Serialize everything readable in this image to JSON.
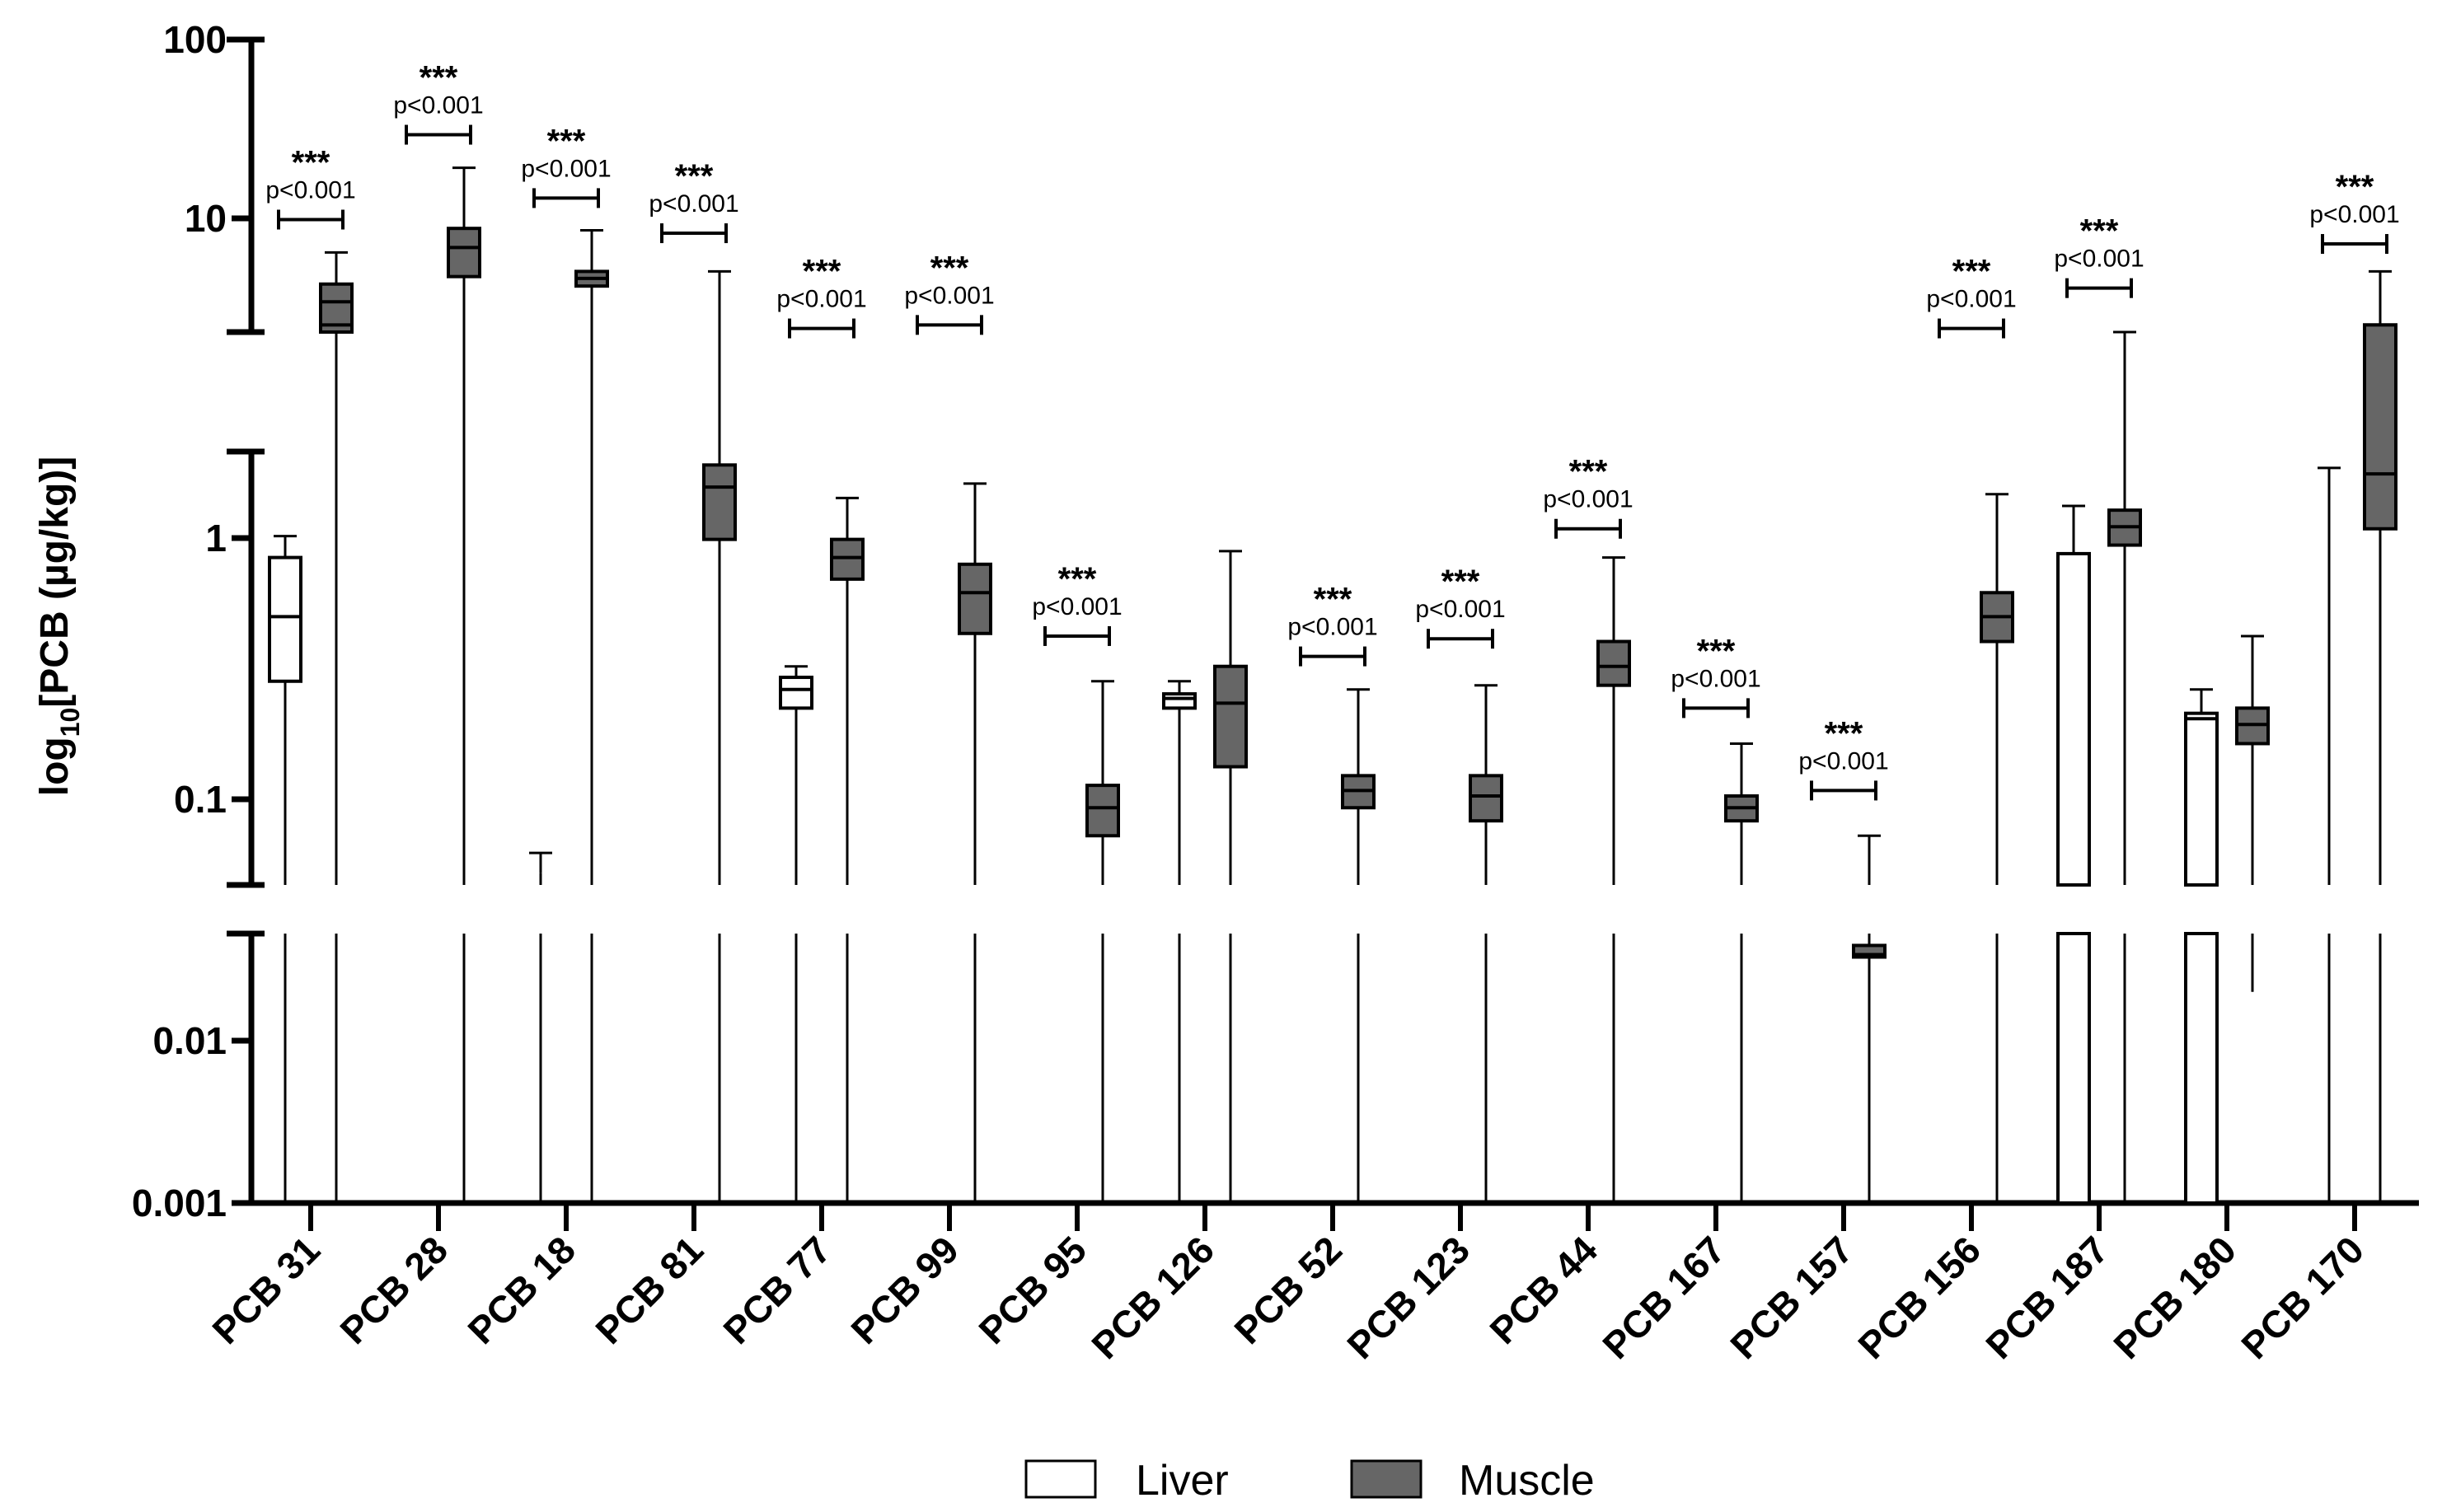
{
  "chart_data": {
    "type": "box",
    "y_scale": "log10",
    "ylabel_prefix": "log",
    "ylabel_sub": "10",
    "ylabel_suffix": "[PCB (µg/kg)]",
    "y_ticks": [
      "100",
      "10",
      "1",
      "0.1",
      "0.01",
      "0.001"
    ],
    "y_tick_values": [
      100,
      10,
      1,
      0.1,
      0.01,
      0.001
    ],
    "axis_breaks": [
      [
        2.0,
        2.2
      ],
      [
        0.04,
        0.045
      ]
    ],
    "categories": [
      "PCB 31",
      "PCB 28",
      "PCB 18",
      "PCB 81",
      "PCB 77",
      "PCB 99",
      "PCB 95",
      "PCB 126",
      "PCB 52",
      "PCB 123",
      "PCB 44",
      "PCB 167",
      "PCB 157",
      "PCB 156",
      "PCB 187",
      "PCB 180",
      "PCB 170"
    ],
    "legend": {
      "liver": "Liver",
      "muscle": "Muscle"
    },
    "colors": {
      "liver_fill": "#ffffff",
      "muscle_fill": "#666666",
      "stroke": "#000000"
    },
    "series": [
      {
        "name": "Liver",
        "boxes": [
          {
            "category": "PCB 31",
            "min": 0.001,
            "q1": 0.28,
            "median": 0.5,
            "q3": 0.85,
            "max": 1.03
          },
          {
            "category": "PCB 28",
            "min": 0.001,
            "q1": 0.001,
            "median": 0.001,
            "q3": 0.001,
            "max": 0.001
          },
          {
            "category": "PCB 18",
            "min": 0.001,
            "q1": 0.05,
            "median": 0.05,
            "q3": 0.05,
            "max": 0.06
          },
          {
            "category": "PCB 81",
            "min": 0.001,
            "q1": 0.001,
            "median": 0.001,
            "q3": 0.001,
            "max": 0.001
          },
          {
            "category": "PCB 77",
            "min": 0.001,
            "q1": 0.22,
            "median": 0.26,
            "q3": 0.29,
            "max": 0.32
          },
          {
            "category": "PCB 99",
            "min": 0.001,
            "q1": 0.001,
            "median": 0.001,
            "q3": 0.001,
            "max": 0.001
          },
          {
            "category": "PCB 95",
            "min": 0.001,
            "q1": 0.001,
            "median": 0.001,
            "q3": 0.001,
            "max": 0.001
          },
          {
            "category": "PCB 126",
            "min": 0.001,
            "q1": 0.22,
            "median": 0.24,
            "q3": 0.25,
            "max": 0.28
          },
          {
            "category": "PCB 52",
            "min": 0.001,
            "q1": 0.001,
            "median": 0.001,
            "q3": 0.001,
            "max": 0.001
          },
          {
            "category": "PCB 123",
            "min": 0.001,
            "q1": 0.001,
            "median": 0.001,
            "q3": 0.001,
            "max": 0.001
          },
          {
            "category": "PCB 44",
            "min": 0.001,
            "q1": 0.001,
            "median": 0.001,
            "q3": 0.001,
            "max": 0.001
          },
          {
            "category": "PCB 167",
            "min": 0.001,
            "q1": 0.001,
            "median": 0.001,
            "q3": 0.001,
            "max": 0.001
          },
          {
            "category": "PCB 157",
            "min": 0.001,
            "q1": 0.001,
            "median": 0.001,
            "q3": 0.001,
            "max": 0.001
          },
          {
            "category": "PCB 156",
            "min": 0.001,
            "q1": 0.001,
            "median": 0.001,
            "q3": 0.001,
            "max": 0.001
          },
          {
            "category": "PCB 187",
            "min": 0.001,
            "q1": 0.001,
            "median": 0.001,
            "q3": 0.88,
            "max": 1.35
          },
          {
            "category": "PCB 180",
            "min": 0.001,
            "q1": 0.001,
            "median": 0.2,
            "q3": 0.21,
            "max": 0.26
          },
          {
            "category": "PCB 170",
            "min": 0.001,
            "q1": 0.001,
            "median": 0.001,
            "q3": 0.001,
            "max": 1.9
          }
        ]
      },
      {
        "name": "Muscle",
        "boxes": [
          {
            "category": "PCB 31",
            "min": 0.001,
            "q1": 2.0,
            "median": 3.0,
            "q3": 3.8,
            "max": 5.8
          },
          {
            "category": "PCB 28",
            "min": 0.001,
            "q1": 4.2,
            "median": 6.2,
            "q3": 8.0,
            "max": 18
          },
          {
            "category": "PCB 18",
            "min": 0.001,
            "q1": 3.7,
            "median": 4.1,
            "q3": 4.5,
            "max": 7.8
          },
          {
            "category": "PCB 81",
            "min": 0.001,
            "q1": 1.0,
            "median": 1.6,
            "q3": 1.95,
            "max": 4.5
          },
          {
            "category": "PCB 77",
            "min": 0.001,
            "q1": 0.7,
            "median": 0.85,
            "q3": 1.0,
            "max": 1.45
          },
          {
            "category": "PCB 99",
            "min": 0.001,
            "q1": 0.43,
            "median": 0.62,
            "q3": 0.8,
            "max": 1.65
          },
          {
            "category": "PCB 95",
            "min": 0.001,
            "q1": 0.07,
            "median": 0.09,
            "q3": 0.11,
            "max": 0.28
          },
          {
            "category": "PCB 126",
            "min": 0.001,
            "q1": 0.13,
            "median": 0.23,
            "q3": 0.32,
            "max": 0.9
          },
          {
            "category": "PCB 52",
            "min": 0.001,
            "q1": 0.09,
            "median": 0.105,
            "q3": 0.12,
            "max": 0.26
          },
          {
            "category": "PCB 123",
            "min": 0.001,
            "q1": 0.08,
            "median": 0.1,
            "q3": 0.12,
            "max": 0.27
          },
          {
            "category": "PCB 44",
            "min": 0.001,
            "q1": 0.27,
            "median": 0.32,
            "q3": 0.4,
            "max": 0.85
          },
          {
            "category": "PCB 167",
            "min": 0.001,
            "q1": 0.08,
            "median": 0.09,
            "q3": 0.1,
            "max": 0.16
          },
          {
            "category": "PCB 157",
            "min": 0.001,
            "q1": 0.029,
            "median": 0.03,
            "q3": 0.034,
            "max": 0.07
          },
          {
            "category": "PCB 156",
            "min": 0.001,
            "q1": 0.4,
            "median": 0.5,
            "q3": 0.62,
            "max": 1.5
          },
          {
            "category": "PCB 187",
            "min": 0.001,
            "q1": 0.95,
            "median": 1.12,
            "q3": 1.3,
            "max": 2.0
          },
          {
            "category": "PCB 180",
            "min": 0.018,
            "q1": 0.16,
            "median": 0.19,
            "q3": 0.22,
            "max": 0.42
          },
          {
            "category": "PCB 170",
            "min": 0.001,
            "q1": 1.1,
            "median": 1.8,
            "q3": 2.2,
            "max": 4.5
          }
        ]
      }
    ],
    "significance": [
      {
        "category": "PCB 31",
        "stars": "***",
        "p": "p<0.001",
        "level": 9.0
      },
      {
        "category": "PCB 28",
        "stars": "***",
        "p": "p<0.001",
        "level": 28
      },
      {
        "category": "PCB 18",
        "stars": "***",
        "p": "p<0.001",
        "level": 12
      },
      {
        "category": "PCB 81",
        "stars": "***",
        "p": "p<0.001",
        "level": 7.5
      },
      {
        "category": "PCB 77",
        "stars": "***",
        "p": "p<0.001",
        "level": 2.1
      },
      {
        "category": "PCB 99",
        "stars": "***",
        "p": "p<0.001",
        "level": 2.2
      },
      {
        "category": "PCB 95",
        "stars": "***",
        "p": "p<0.001",
        "level": 0.42
      },
      {
        "category": "PCB 52",
        "stars": "***",
        "p": "p<0.001",
        "level": 0.35
      },
      {
        "category": "PCB 123",
        "stars": "***",
        "p": "p<0.001",
        "level": 0.41
      },
      {
        "category": "PCB 44",
        "stars": "***",
        "p": "p<0.001",
        "level": 1.1
      },
      {
        "category": "PCB 167",
        "stars": "***",
        "p": "p<0.001",
        "level": 0.22
      },
      {
        "category": "PCB 157",
        "stars": "***",
        "p": "p<0.001",
        "level": 0.105
      },
      {
        "category": "PCB 156",
        "stars": "***",
        "p": "p<0.001",
        "level": 2.1
      },
      {
        "category": "PCB 187",
        "stars": "***",
        "p": "p<0.001",
        "level": 3.6
      },
      {
        "category": "PCB 170",
        "stars": "***",
        "p": "p<0.001",
        "level": 6.5
      }
    ]
  }
}
